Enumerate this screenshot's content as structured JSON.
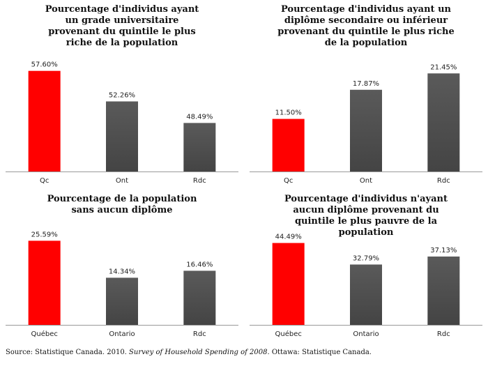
{
  "chart_data": [
    {
      "type": "bar",
      "title": "Pourcentage d'individus ayant un grade universitaire provenant du quintile le plus riche de la population",
      "categories": [
        "Qc",
        "Ont",
        "Rdc"
      ],
      "values": [
        57.6,
        52.26,
        48.49
      ],
      "value_labels": [
        "57.60%",
        "52.26%",
        "48.49%"
      ],
      "colors": [
        "#ff0000",
        "#555555",
        "#555555"
      ],
      "ylim": [
        40,
        60
      ],
      "xlabel": "",
      "ylabel": ""
    },
    {
      "type": "bar",
      "title": "Pourcentage d'individus ayant un diplôme secondaire ou inférieur provenant du quintile le plus riche de la population",
      "categories": [
        "Qc",
        "Ont",
        "Rdc"
      ],
      "values": [
        11.5,
        17.87,
        21.45
      ],
      "value_labels": [
        "11.50%",
        "17.87%",
        "21.45%"
      ],
      "colors": [
        "#ff0000",
        "#555555",
        "#555555"
      ],
      "ylim": [
        0,
        25
      ],
      "xlabel": "",
      "ylabel": ""
    },
    {
      "type": "bar",
      "title": "Pourcentage de la population sans aucun diplôme",
      "categories": [
        "Québec",
        "Ontario",
        "Rdc"
      ],
      "values": [
        25.59,
        14.34,
        16.46
      ],
      "value_labels": [
        "25.59%",
        "14.34%",
        "16.46%"
      ],
      "colors": [
        "#ff0000",
        "#555555",
        "#555555"
      ],
      "ylim": [
        0,
        28
      ],
      "xlabel": "",
      "ylabel": ""
    },
    {
      "type": "bar",
      "title": "Pourcentage d'individus n'ayant aucun diplôme provenant du quintile le plus pauvre de la population",
      "categories": [
        "Québec",
        "Ontario",
        "Rdc"
      ],
      "values": [
        44.49,
        32.79,
        37.13
      ],
      "value_labels": [
        "44.49%",
        "32.79%",
        "37.13%"
      ],
      "colors": [
        "#ff0000",
        "#555555",
        "#555555"
      ],
      "ylim": [
        0,
        50
      ],
      "xlabel": "",
      "ylabel": ""
    }
  ],
  "source": {
    "prefix": "Source: Statistique Canada. 2010. ",
    "italic": "Survey of Household Spending of 2008",
    "suffix": ". Ottawa: Statistique Canada."
  }
}
